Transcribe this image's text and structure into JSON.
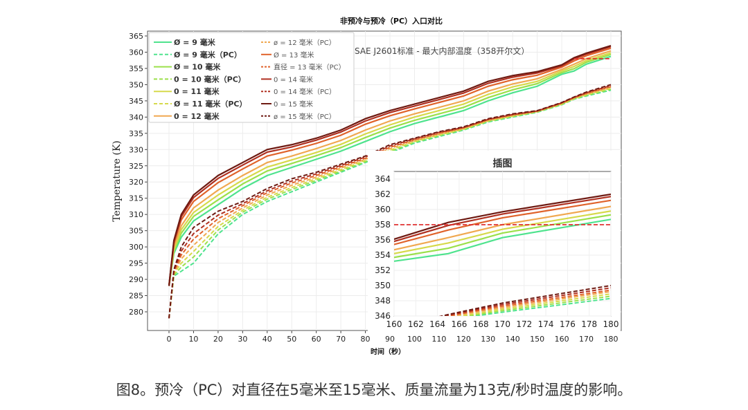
{
  "chart_data": {
    "type": "line",
    "title": "非预冷与预冷（PC）入口对比",
    "xlabel": "时间（秒）",
    "ylabel": "Temperature (K)",
    "xlim": [
      -8,
      186
    ],
    "ylim": [
      275.5,
      366
    ],
    "xticks": [
      0,
      10,
      20,
      30,
      40,
      50,
      60,
      70,
      80,
      90,
      100,
      110,
      120,
      130,
      140,
      150,
      160,
      170,
      180
    ],
    "yticks": [
      280,
      285,
      290,
      295,
      300,
      305,
      310,
      315,
      320,
      325,
      330,
      335,
      340,
      345,
      350,
      355,
      360,
      365
    ],
    "grid": true,
    "legend_position": "top-left",
    "x": [
      0,
      2,
      5,
      10,
      20,
      30,
      40,
      50,
      60,
      70,
      80,
      90,
      100,
      110,
      120,
      130,
      140,
      150,
      160,
      165,
      170,
      180
    ],
    "series": [
      {
        "name": "Ø = 9 毫米",
        "color": "#4ee38d",
        "dashed": false,
        "values": [
          288,
          298,
          303,
          308,
          313,
          318,
          322,
          324.5,
          327,
          329.5,
          332.5,
          335.5,
          338,
          340,
          342,
          345,
          347.5,
          349.5,
          353.2,
          354.2,
          356.3,
          358.7
        ]
      },
      {
        "name": "Ø = 9 毫米（PC）",
        "color": "#4ee38d",
        "dashed": true,
        "values": [
          278,
          291,
          292.5,
          295,
          304,
          310,
          314,
          317,
          320,
          323,
          326,
          329,
          332,
          334,
          336,
          338.5,
          340,
          341.5,
          343.8,
          345.5,
          346.5,
          348.3
        ]
      },
      {
        "name": "Ø = 10 毫米",
        "color": "#9be04a",
        "dashed": false,
        "values": [
          288,
          298.7,
          304.2,
          309.4,
          314.5,
          319.4,
          323.4,
          325.7,
          328.1,
          330.6,
          333.7,
          336.6,
          339,
          341,
          343,
          346,
          348.4,
          350.3,
          353.7,
          354.9,
          356.9,
          359.3
        ]
      },
      {
        "name": "0 = 10 毫米（PC）",
        "color": "#9be04a",
        "dashed": true,
        "values": [
          278,
          291.3,
          293.8,
          296.9,
          305.2,
          310.7,
          314.7,
          317.7,
          320.5,
          323.4,
          326.3,
          329.4,
          332.3,
          334.3,
          336.2,
          338.7,
          340.2,
          341.6,
          343.9,
          345.6,
          346.7,
          348.6
        ]
      },
      {
        "name": "0 = 11 毫米",
        "color": "#d6d94a",
        "dashed": false,
        "values": [
          288,
          299.3,
          305.3,
          310.6,
          316,
          320.6,
          324.6,
          326.8,
          329.1,
          331.6,
          334.8,
          337.6,
          340,
          342,
          344,
          347,
          349.3,
          351,
          354.2,
          355.6,
          357.4,
          359.8
        ]
      },
      {
        "name": "Ø = 11 毫米（PC）",
        "color": "#d6d94a",
        "dashed": true,
        "values": [
          278,
          291.7,
          295,
          298.6,
          306.3,
          311.3,
          315.3,
          318.3,
          321,
          323.8,
          326.7,
          329.8,
          332.5,
          334.5,
          336.3,
          338.8,
          340.3,
          341.7,
          344,
          345.7,
          346.9,
          348.9
        ]
      },
      {
        "name": "0 = 12 毫米",
        "color": "#f0a850",
        "dashed": false,
        "values": [
          288,
          300,
          306.5,
          312,
          317.5,
          322,
          326,
          328,
          330.3,
          332.8,
          336,
          338.8,
          341,
          343,
          345,
          348,
          350.2,
          351.8,
          354.7,
          356.3,
          358,
          360.4
        ]
      },
      {
        "name": "ø = 12 毫米（PC）",
        "color": "#f0a850",
        "dashed": true,
        "values": [
          278,
          292,
          296.3,
          300.5,
          307.5,
          312,
          316,
          319,
          321.5,
          324.3,
          327,
          330.3,
          332.8,
          334.8,
          336.5,
          339,
          340.5,
          341.8,
          344.2,
          345.9,
          347.1,
          349.2
        ]
      },
      {
        "name": "Ø = 13 毫米",
        "color": "#e0622a",
        "dashed": false,
        "values": [
          288,
          301,
          308.3,
          314,
          319.8,
          324,
          328,
          329.8,
          331.9,
          334.4,
          337.8,
          340.4,
          342.5,
          344.5,
          346.5,
          349.5,
          351.5,
          352.9,
          355.4,
          357.3,
          358.9,
          361.2
        ]
      },
      {
        "name": "直径 = 13 毫米（PC）",
        "color": "#e0622a",
        "dashed": true,
        "values": [
          278,
          292.3,
          297.5,
          302.4,
          308.7,
          312.7,
          316.7,
          319.7,
          322,
          324.7,
          327.3,
          330.7,
          333,
          335,
          336.7,
          339.2,
          340.7,
          341.8,
          344.3,
          346,
          347.3,
          349.4
        ]
      },
      {
        "name": "0 = 14 毫米",
        "color": "#b03020",
        "dashed": false,
        "values": [
          288,
          301.6,
          309.3,
          315.2,
          321.1,
          325.2,
          329.2,
          330.8,
          332.9,
          335.4,
          338.8,
          341.4,
          343.4,
          345.4,
          347.4,
          350.4,
          352.3,
          353.6,
          355.8,
          357.9,
          359.4,
          361.7
        ]
      },
      {
        "name": "0 = 14 毫米（PC）",
        "color": "#b03020",
        "dashed": true,
        "values": [
          278,
          292.7,
          298.7,
          304.1,
          309.8,
          313.3,
          317.3,
          320.3,
          322.5,
          325.1,
          327.7,
          331.1,
          333.3,
          335.3,
          336.8,
          339.3,
          340.8,
          341.9,
          344.4,
          346.1,
          347.5,
          349.7
        ]
      },
      {
        "name": "0 = 15 毫米",
        "color": "#6e1a12",
        "dashed": false,
        "values": [
          288,
          302,
          310,
          316,
          322,
          326,
          330,
          331.5,
          333.5,
          336,
          339.5,
          342,
          344,
          346,
          348,
          351,
          352.8,
          354,
          356.1,
          358.3,
          359.7,
          362
        ]
      },
      {
        "name": "ø = 15 毫米（PC）",
        "color": "#6e1a12",
        "dashed": true,
        "values": [
          278,
          293,
          300,
          306,
          311,
          314,
          318,
          321,
          323,
          325.5,
          328,
          331.5,
          333.5,
          335.5,
          337,
          339.5,
          341,
          342,
          344.5,
          346.2,
          347.7,
          350
        ]
      }
    ],
    "reference_line": {
      "label": "SAE J2601标准 - 最大内部温度（358开尔文）",
      "value": 358,
      "x_range": [
        165,
        180
      ],
      "color": "#e03030"
    },
    "inset": {
      "title": "插图",
      "xlim": [
        160,
        180
      ],
      "ylim": [
        346,
        365
      ],
      "xticks": [
        160,
        162,
        164,
        166,
        168,
        170,
        172,
        174,
        176,
        178,
        180
      ],
      "yticks": [
        346,
        348,
        350,
        352,
        354,
        356,
        358,
        360,
        362,
        364
      ]
    }
  },
  "caption": "图8。预冷（PC）对直径在5毫米至15毫米、质量流量为13克/秒时温度的影响。"
}
